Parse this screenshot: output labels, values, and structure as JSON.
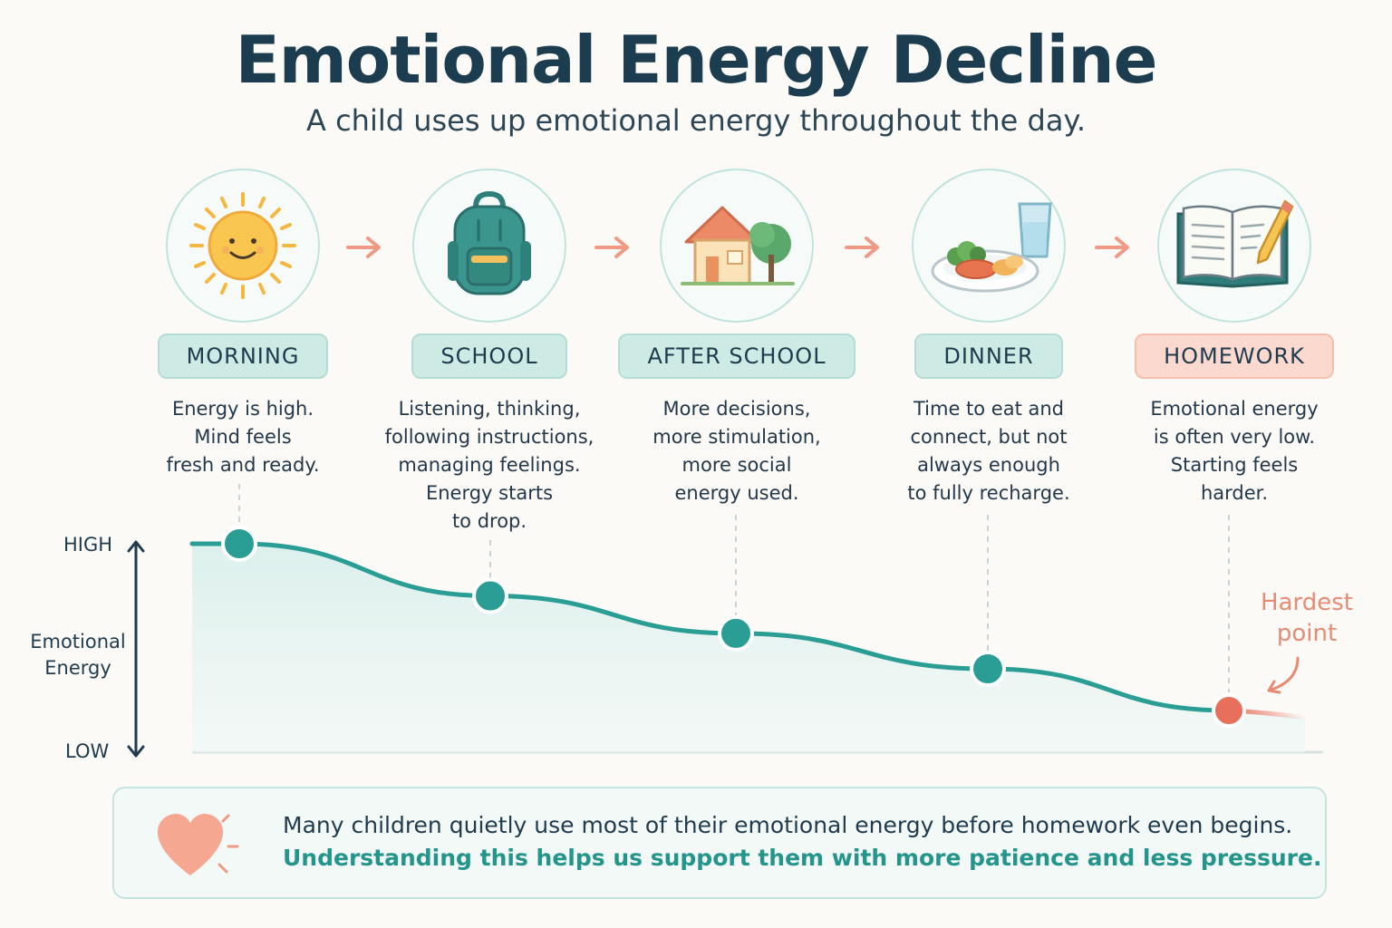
{
  "title": "Emotional Energy Decline",
  "subtitle": "A child uses up emotional energy throughout the day.",
  "stages": [
    {
      "label": "MORNING",
      "icon": "sun-icon",
      "description": [
        "Energy is high.",
        "Mind feels",
        "fresh and ready."
      ],
      "energy": 1.0
    },
    {
      "label": "SCHOOL",
      "icon": "backpack-icon",
      "description": [
        "Listening, thinking,",
        "following instructions,",
        "managing feelings.",
        "Energy starts",
        "to drop."
      ],
      "energy": 0.75
    },
    {
      "label": "AFTER SCHOOL",
      "icon": "house-icon",
      "description": [
        "More decisions,",
        "more stimulation,",
        "more social",
        "energy used."
      ],
      "energy": 0.57
    },
    {
      "label": "DINNER",
      "icon": "dinner-plate-icon",
      "description": [
        "Time to eat and",
        "connect, but not",
        "always enough",
        "to fully recharge."
      ],
      "energy": 0.4
    },
    {
      "label": "HOMEWORK",
      "icon": "open-book-pencil-icon",
      "description": [
        "Emotional energy",
        "is often very low.",
        "Starting feels",
        "harder."
      ],
      "energy": 0.2
    }
  ],
  "axis": {
    "label_line1": "Emotional",
    "label_line2": "Energy",
    "high": "HIGH",
    "low": "LOW"
  },
  "annotation": {
    "line1": "Hardest",
    "line2": "point"
  },
  "banner": {
    "line1": "Many children quietly use most of their emotional energy before homework even begins.",
    "line2": "Understanding this helps us support them with more patience and less pressure.",
    "icon": "heart-icon"
  },
  "colors": {
    "teal": "#2a9d94",
    "coral": "#e86f5c",
    "pill": "#cdeae5",
    "pill_highlight": "#fbd9cf"
  }
}
